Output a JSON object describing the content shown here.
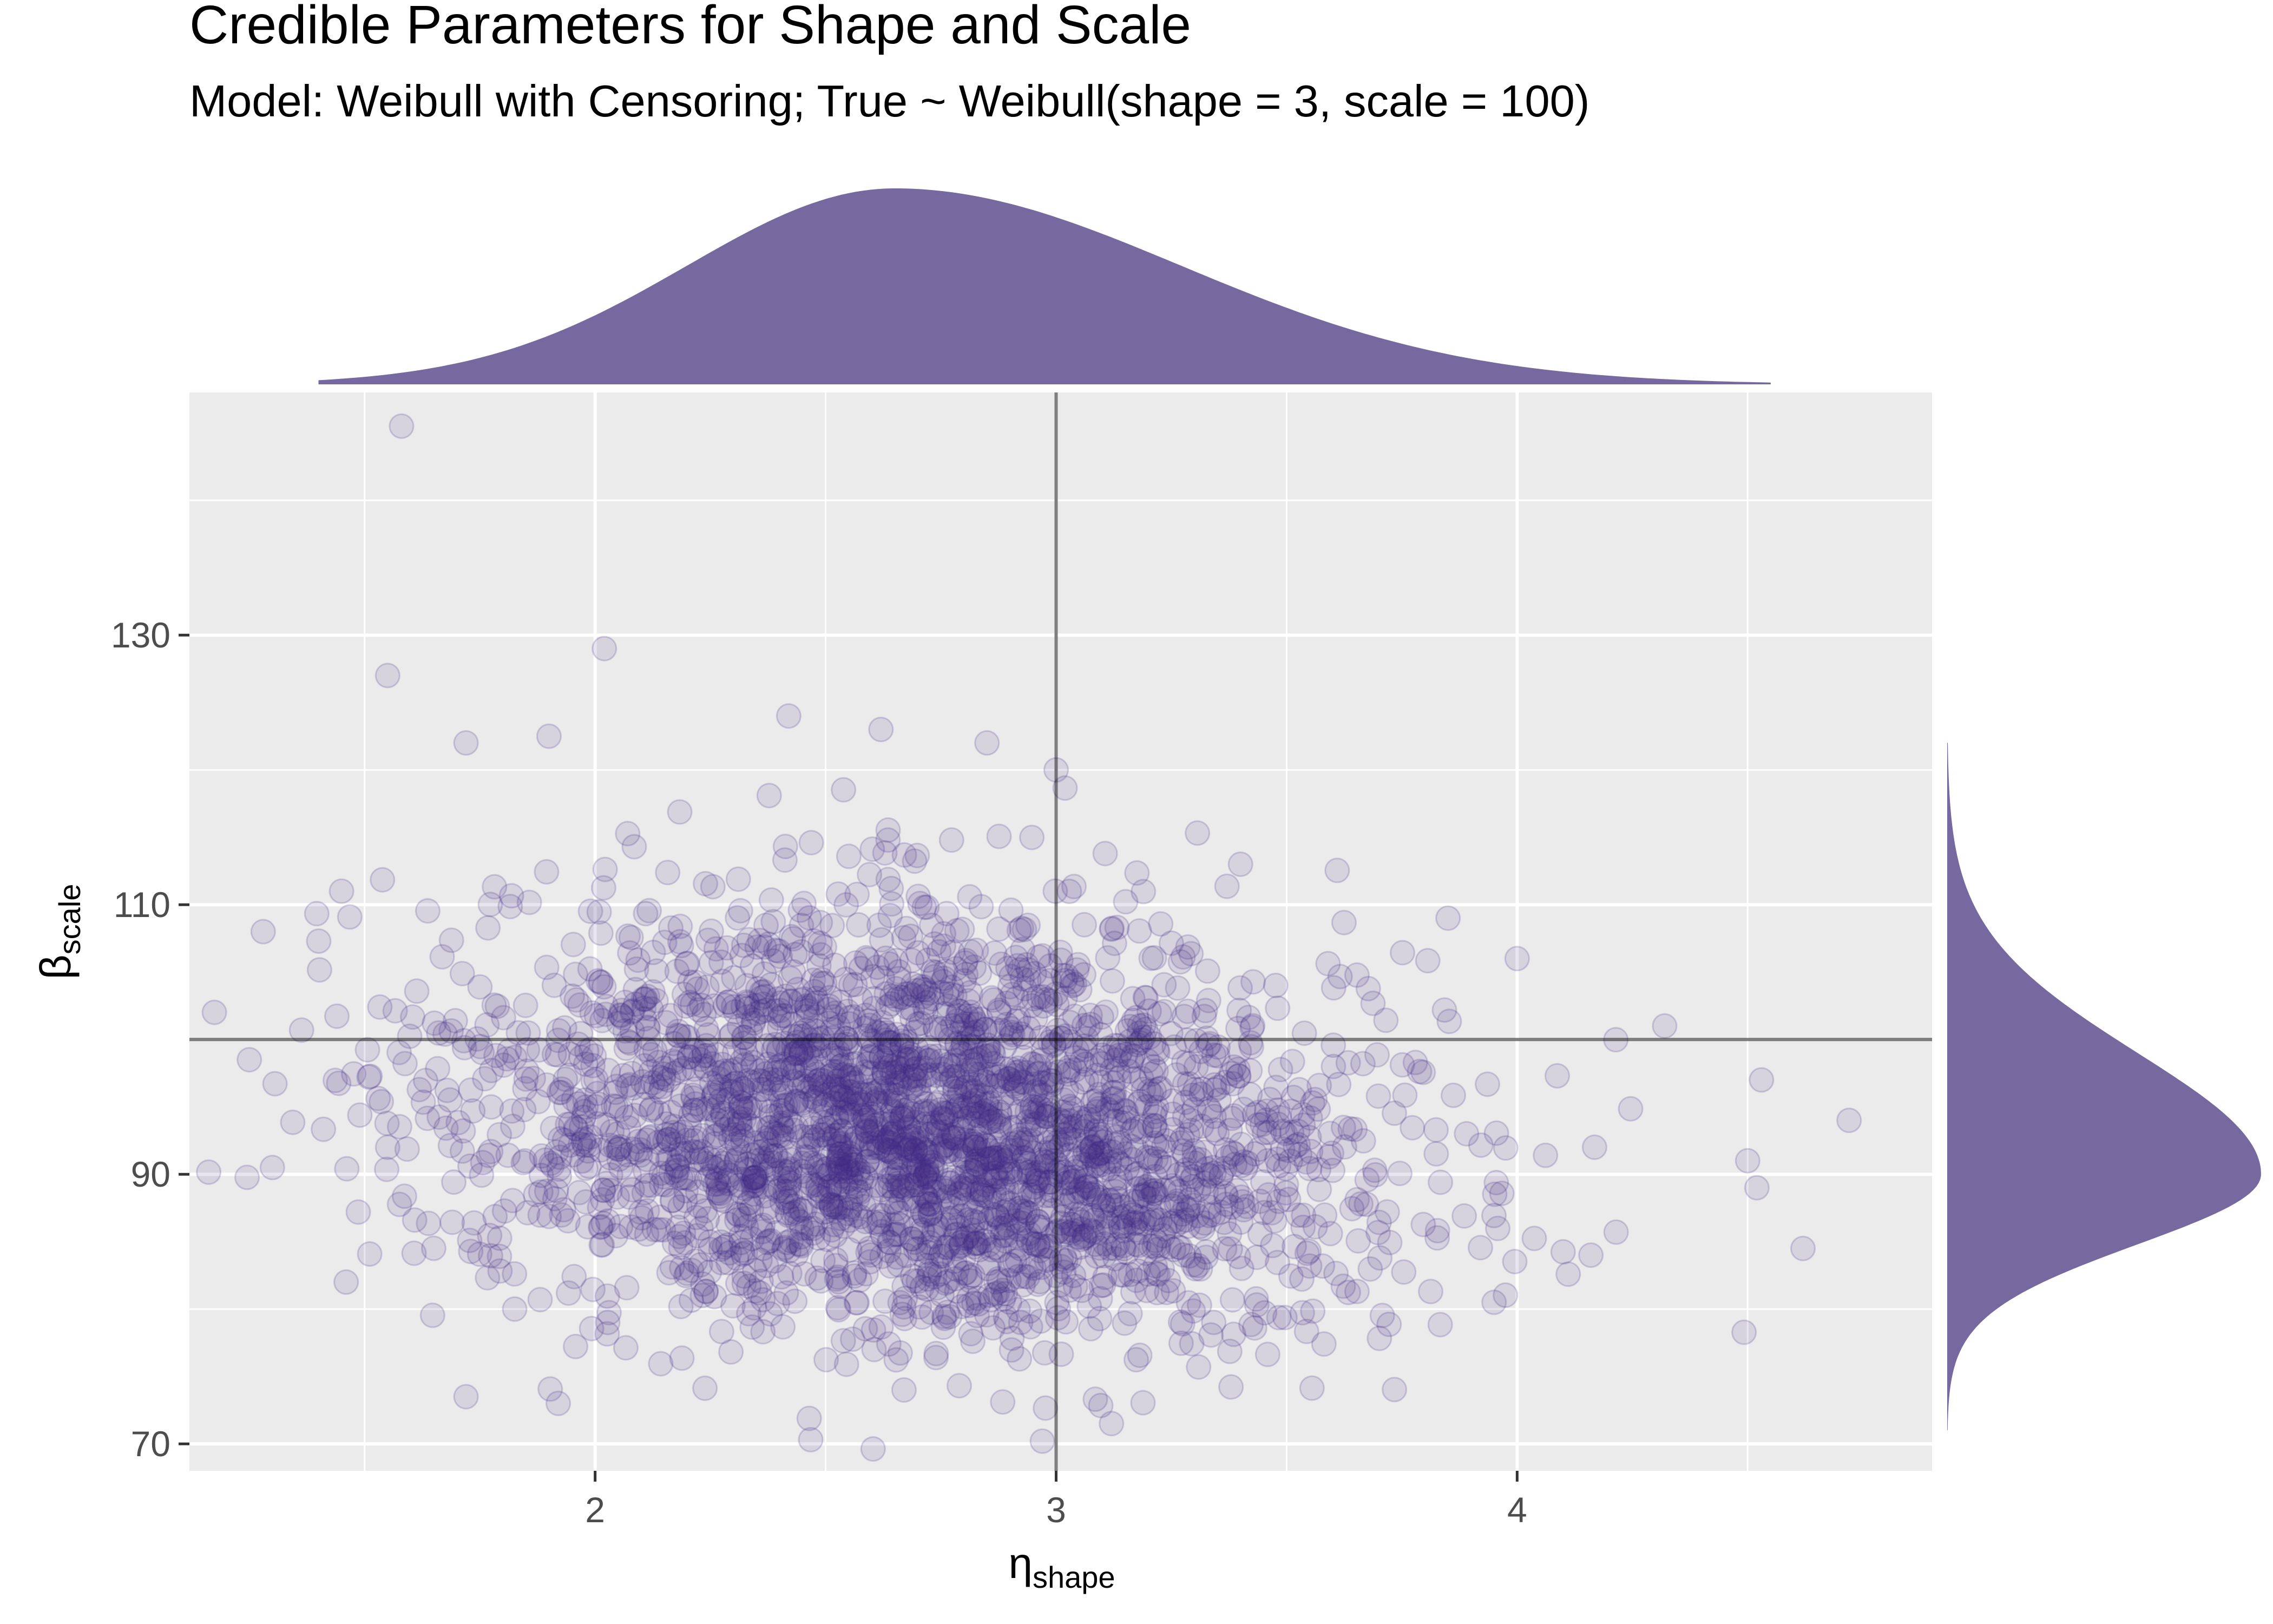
{
  "chart_data": {
    "type": "scatter",
    "title": "Credible Parameters for Shape and Scale",
    "subtitle": "Model: Weibull with Censoring; True ~ Weibull(shape = 3, scale = 100)",
    "xlabel": {
      "symbol": "η",
      "sub": "shape"
    },
    "ylabel": {
      "symbol": "β",
      "sub": "scale"
    },
    "xlim": [
      1.12,
      4.9
    ],
    "ylim": [
      68,
      148
    ],
    "xticks": [
      2,
      3,
      4
    ],
    "xtick_labels": [
      "2",
      "3",
      "4"
    ],
    "yticks": [
      70,
      90,
      110,
      130
    ],
    "ytick_labels": [
      "70",
      "90",
      "110",
      "130"
    ],
    "grid": true,
    "reference_lines": {
      "x": 3,
      "y": 100
    },
    "point_color": "#3f2d87",
    "point_alpha": 0.12,
    "density_color": "#75699f",
    "panel_bg": "#ebebeb",
    "marginals": {
      "x_density": {
        "range": [
          1.4,
          4.55
        ],
        "peak": 2.65
      },
      "y_density": {
        "range": [
          71,
          122
        ],
        "peak": 90
      }
    },
    "points": {
      "n_approx": 3000,
      "shape_center": 2.7,
      "shape_sd": 0.48,
      "scale_center": 93,
      "scale_sd": 7.5
    },
    "notable_points": [
      [
        1.58,
        145.5
      ],
      [
        2.02,
        129
      ],
      [
        1.55,
        127
      ],
      [
        2.42,
        124
      ],
      [
        1.28,
        108
      ],
      [
        1.45,
        111
      ],
      [
        1.25,
        98.5
      ],
      [
        1.3,
        90.5
      ],
      [
        1.46,
        82
      ],
      [
        1.55,
        92
      ],
      [
        4.72,
        94
      ],
      [
        4.62,
        84.5
      ],
      [
        4.53,
        97
      ],
      [
        4.5,
        91
      ],
      [
        4.52,
        89
      ],
      [
        3.12,
        71.5
      ],
      [
        1.72,
        73.5
      ],
      [
        1.92,
        73
      ],
      [
        2.67,
        74
      ],
      [
        3.0,
        120
      ],
      [
        2.85,
        122
      ],
      [
        2.62,
        123
      ],
      [
        1.72,
        122
      ],
      [
        1.9,
        122.5
      ],
      [
        3.4,
        113
      ],
      [
        3.85,
        109
      ],
      [
        4.32,
        101
      ],
      [
        4.0,
        106
      ],
      [
        3.95,
        80.5
      ],
      [
        4.16,
        84
      ]
    ]
  }
}
